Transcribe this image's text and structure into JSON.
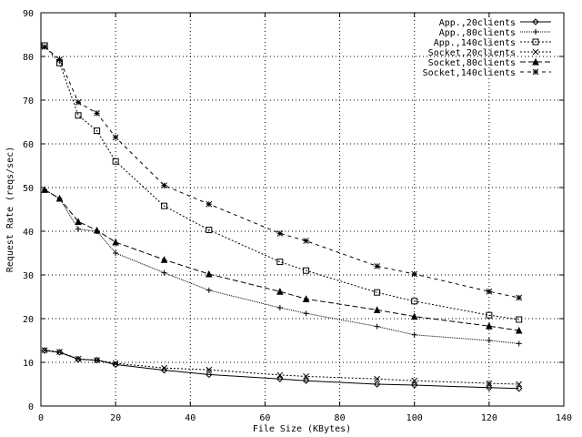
{
  "chart_data": {
    "type": "line",
    "title": "",
    "xlabel": "File Size (KBytes)",
    "ylabel": "Request Rate (reqs/sec)",
    "xlim": [
      0,
      140
    ],
    "ylim": [
      0,
      90
    ],
    "xticks": [
      0,
      20,
      40,
      60,
      80,
      100,
      120,
      140
    ],
    "yticks": [
      0,
      10,
      20,
      30,
      40,
      50,
      60,
      70,
      80,
      90
    ],
    "grid": true,
    "legend_position": "top-right",
    "x": [
      1,
      5,
      10,
      15,
      20,
      33,
      45,
      64,
      71,
      90,
      100,
      120,
      128
    ],
    "series": [
      {
        "name": "App.,20clients",
        "marker": "diamond",
        "dash": "solid",
        "values": [
          12.7,
          12.3,
          10.7,
          10.5,
          9.5,
          8.2,
          7.2,
          6.2,
          5.8,
          5.0,
          4.8,
          4.2,
          4.0
        ]
      },
      {
        "name": "App.,80clients",
        "marker": "plus",
        "dash": "dotted",
        "values": [
          49.5,
          47.5,
          40.5,
          40.0,
          35.0,
          30.5,
          26.5,
          22.5,
          21.2,
          18.2,
          16.3,
          15.0,
          14.3
        ]
      },
      {
        "name": "App.,140clients",
        "marker": "square",
        "dash": "short-dash",
        "values": [
          82.5,
          78.5,
          66.5,
          63.0,
          56.0,
          45.8,
          40.3,
          33.0,
          31.0,
          26.0,
          24.0,
          20.8,
          19.8
        ]
      },
      {
        "name": "Socket,20clients",
        "marker": "x",
        "dash": "short-dash",
        "values": [
          12.8,
          12.4,
          10.8,
          10.5,
          9.8,
          8.7,
          8.3,
          7.1,
          6.8,
          6.2,
          5.8,
          5.2,
          5.0
        ]
      },
      {
        "name": "Socket,80clients",
        "marker": "triangle",
        "dash": "long-dash",
        "values": [
          49.5,
          47.5,
          42.2,
          40.2,
          37.5,
          33.5,
          30.2,
          26.2,
          24.5,
          22.0,
          20.5,
          18.3,
          17.3
        ]
      },
      {
        "name": "Socket,140clients",
        "marker": "asterisk",
        "dash": "dash",
        "values": [
          82.2,
          79.3,
          69.5,
          67.0,
          61.5,
          50.5,
          46.2,
          39.5,
          37.8,
          32.0,
          30.2,
          26.2,
          24.8
        ]
      }
    ]
  }
}
